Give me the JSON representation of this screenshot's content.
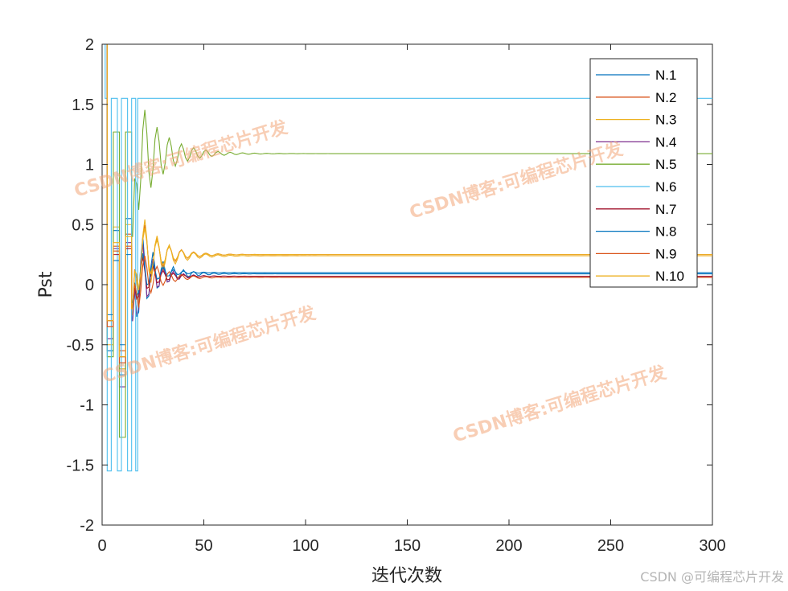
{
  "chart_data": {
    "type": "line",
    "xlabel": "迭代次数",
    "ylabel": "Pst",
    "xlim": [
      0,
      300
    ],
    "ylim": [
      -2,
      2
    ],
    "xticks": [
      0,
      50,
      100,
      150,
      200,
      250,
      300
    ],
    "yticks": [
      -2,
      -1.5,
      -1,
      -0.5,
      0,
      0.5,
      1,
      1.5,
      2
    ],
    "ytick_labels": [
      "-2",
      "-1.5",
      "-1",
      "-0.5",
      "0",
      "0.5",
      "1",
      "1.5",
      "2"
    ],
    "grid": false,
    "legend_position": "top-right",
    "series": [
      {
        "name": "N.1",
        "color": "#0072BD",
        "final": 0.09,
        "amp": 0.55,
        "period": 5,
        "decay": 9,
        "jumps": [
          [
            3,
            -0.55
          ],
          [
            6,
            0.45
          ],
          [
            9,
            -0.75
          ],
          [
            12,
            0.55
          ],
          [
            15,
            -0.3
          ]
        ]
      },
      {
        "name": "N.2",
        "color": "#D95319",
        "final": 0.25,
        "amp": 0.45,
        "period": 6,
        "decay": 10,
        "jumps": [
          [
            3,
            -0.3
          ],
          [
            6,
            0.32
          ],
          [
            9,
            -0.55
          ],
          [
            12,
            0.42
          ],
          [
            15,
            -0.2
          ]
        ]
      },
      {
        "name": "N.3",
        "color": "#EDB120",
        "final": 0.24,
        "amp": 0.55,
        "period": 6,
        "decay": 10,
        "jumps": [
          [
            3,
            -0.5
          ],
          [
            6,
            0.48
          ],
          [
            9,
            -0.7
          ],
          [
            12,
            0.5
          ],
          [
            15,
            -0.25
          ]
        ]
      },
      {
        "name": "N.4",
        "color": "#7E2F8E",
        "final": 0.07,
        "amp": 0.5,
        "period": 5,
        "decay": 8,
        "jumps": [
          [
            3,
            -0.45
          ],
          [
            6,
            0.3
          ],
          [
            9,
            -0.85
          ],
          [
            12,
            0.35
          ],
          [
            15,
            -0.3
          ]
        ]
      },
      {
        "name": "N.5",
        "color": "#77AC30",
        "final": 1.09,
        "amp": 0.6,
        "period": 6,
        "decay": 12,
        "jumps": [
          [
            3,
            -0.6
          ],
          [
            6,
            1.27
          ],
          [
            9,
            -1.27
          ],
          [
            12,
            1.27
          ],
          [
            15,
            0.4
          ]
        ]
      },
      {
        "name": "N.6",
        "color": "#4DBEEE",
        "final": 1.55,
        "amp": 0.0,
        "period": 5,
        "decay": 5,
        "jumps": [
          [
            2,
            1.55
          ],
          [
            3,
            -1.55
          ],
          [
            5,
            1.55
          ],
          [
            8,
            -1.55
          ],
          [
            10,
            1.55
          ],
          [
            13,
            -1.55
          ],
          [
            15,
            1.55
          ],
          [
            17,
            -1.55
          ],
          [
            18,
            1.55
          ]
        ]
      },
      {
        "name": "N.7",
        "color": "#A2142F",
        "final": 0.07,
        "amp": 0.3,
        "period": 5,
        "decay": 8,
        "jumps": [
          [
            3,
            -0.3
          ],
          [
            6,
            0.25
          ],
          [
            9,
            -0.6
          ],
          [
            12,
            0.3
          ],
          [
            15,
            -0.2
          ]
        ]
      },
      {
        "name": "N.8",
        "color": "#0072BD",
        "final": 0.1,
        "amp": 0.3,
        "period": 5,
        "decay": 8,
        "jumps": [
          [
            3,
            -0.25
          ],
          [
            6,
            0.2
          ],
          [
            9,
            -0.5
          ],
          [
            12,
            0.25
          ],
          [
            15,
            -0.15
          ]
        ]
      },
      {
        "name": "N.9",
        "color": "#D95319",
        "final": 0.06,
        "amp": 0.35,
        "period": 6,
        "decay": 9,
        "jumps": [
          [
            3,
            -0.35
          ],
          [
            6,
            0.28
          ],
          [
            9,
            -0.65
          ],
          [
            12,
            0.32
          ],
          [
            15,
            -0.2
          ]
        ]
      },
      {
        "name": "N.10",
        "color": "#EDB120",
        "final": 0.25,
        "amp": 0.4,
        "period": 6,
        "decay": 10,
        "jumps": [
          [
            3,
            -0.3
          ],
          [
            6,
            0.35
          ],
          [
            9,
            -0.6
          ],
          [
            12,
            0.4
          ],
          [
            15,
            -0.2
          ]
        ]
      }
    ]
  },
  "watermarks": [
    "CSDN博客:可编程芯片开发",
    "CSDN博客:可编程芯片开发",
    "CSDN博客:可编程芯片开发",
    "CSDN博客:可编程芯片开发"
  ],
  "credit": "CSDN @可编程芯片开发"
}
